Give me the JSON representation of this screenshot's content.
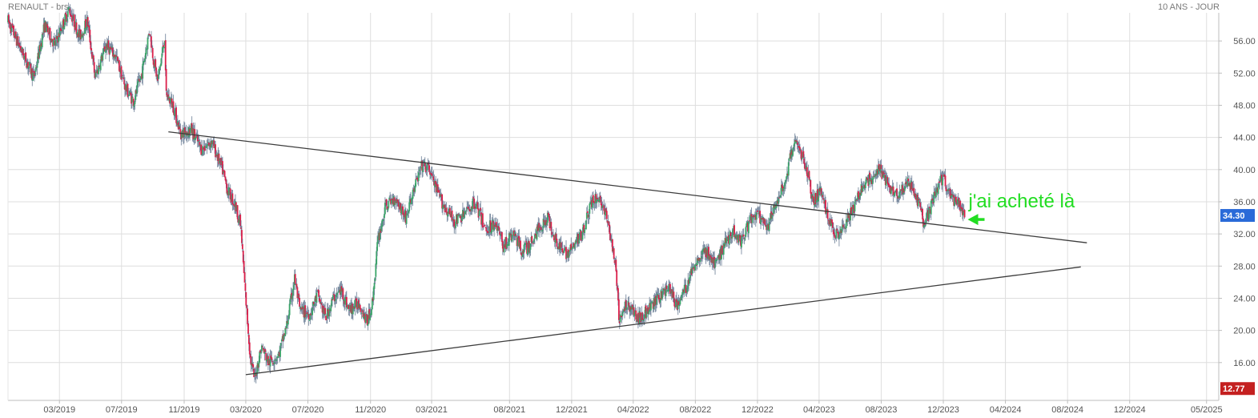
{
  "header": {
    "instrument": "RENAULT - brs",
    "period": "10 ANS - JOUR"
  },
  "annotation": {
    "text": "j'ai acheté là",
    "color": "#22dd22"
  },
  "colors": {
    "up": "#3aa668",
    "down": "#dc1f4a",
    "grid": "#dedede",
    "trendline": "#3c3c3c",
    "last_badge": "#2a6ad8",
    "low_badge": "#c42020"
  },
  "chart_data": {
    "type": "candlestick",
    "title": "RENAULT - brs",
    "subtitle": "10 ANS - JOUR",
    "xlabel": "",
    "ylabel": "",
    "x_range": [
      "2018-11-20",
      "2025-05-25"
    ],
    "ylim": [
      11.3,
      59.5
    ],
    "y_ticks": [
      16,
      20,
      24,
      28,
      32,
      36,
      40,
      44,
      48,
      52,
      56
    ],
    "y_tick_labels": [
      "16.00",
      "20.00",
      "24.00",
      "28.00",
      "32.00",
      "36.00",
      "40.00",
      "44.00",
      "48.00",
      "52.00",
      "56.00"
    ],
    "x_ticks": [
      "2019-03-01",
      "2019-07-01",
      "2019-11-01",
      "2020-03-01",
      "2020-07-01",
      "2020-11-01",
      "2021-03-01",
      "2021-08-01",
      "2021-12-01",
      "2022-04-01",
      "2022-08-01",
      "2022-12-01",
      "2023-04-01",
      "2023-08-01",
      "2023-12-01",
      "2024-04-01",
      "2024-08-01",
      "2024-12-01",
      "2025-05-01"
    ],
    "x_tick_labels": [
      "03/2019",
      "07/2019",
      "11/2019",
      "03/2020",
      "07/2020",
      "11/2020",
      "03/2021",
      "08/2021",
      "12/2021",
      "04/2022",
      "08/2022",
      "12/2022",
      "04/2023",
      "08/2023",
      "12/2023",
      "04/2024",
      "08/2024",
      "12/2024",
      "05/2025"
    ],
    "grid": true,
    "last_value": {
      "label": "34.30",
      "value": 34.3
    },
    "low_value": {
      "label": "12.77",
      "value": 12.77
    },
    "price_path": [
      [
        "2018-11-20",
        58.5
      ],
      [
        "2018-12-15",
        55.0
      ],
      [
        "2019-01-10",
        51.5
      ],
      [
        "2019-01-31",
        58.0
      ],
      [
        "2019-02-20",
        55.5
      ],
      [
        "2019-03-20",
        60.0
      ],
      [
        "2019-04-10",
        56.5
      ],
      [
        "2019-04-25",
        58.5
      ],
      [
        "2019-05-10",
        51.5
      ],
      [
        "2019-06-01",
        55.5
      ],
      [
        "2019-06-20",
        54.0
      ],
      [
        "2019-07-10",
        50.0
      ],
      [
        "2019-07-25",
        48.5
      ],
      [
        "2019-08-10",
        52.0
      ],
      [
        "2019-08-25",
        57.5
      ],
      [
        "2019-09-01",
        54.0
      ],
      [
        "2019-09-10",
        51.0
      ],
      [
        "2019-09-20",
        55.0
      ],
      [
        "2019-09-24",
        56.5
      ],
      [
        "2019-09-26",
        49.5
      ],
      [
        "2019-10-10",
        48.0
      ],
      [
        "2019-10-25",
        44.5
      ],
      [
        "2019-11-15",
        45.0
      ],
      [
        "2019-12-05",
        42.5
      ],
      [
        "2019-12-25",
        43.5
      ],
      [
        "2020-01-15",
        40.0
      ],
      [
        "2020-01-25",
        37.5
      ],
      [
        "2020-02-10",
        35.5
      ],
      [
        "2020-02-20",
        33.0
      ],
      [
        "2020-02-28",
        25.5
      ],
      [
        "2020-03-10",
        16.5
      ],
      [
        "2020-03-18",
        14.0
      ],
      [
        "2020-04-01",
        18.0
      ],
      [
        "2020-04-15",
        16.0
      ],
      [
        "2020-05-05",
        17.0
      ],
      [
        "2020-05-20",
        20.5
      ],
      [
        "2020-06-05",
        26.5
      ],
      [
        "2020-06-15",
        22.5
      ],
      [
        "2020-07-05",
        22.0
      ],
      [
        "2020-07-20",
        24.5
      ],
      [
        "2020-08-05",
        21.5
      ],
      [
        "2020-08-20",
        24.0
      ],
      [
        "2020-09-05",
        25.0
      ],
      [
        "2020-09-20",
        22.5
      ],
      [
        "2020-10-10",
        23.5
      ],
      [
        "2020-10-25",
        21.0
      ],
      [
        "2020-11-05",
        23.5
      ],
      [
        "2020-11-15",
        31.0
      ],
      [
        "2020-12-01",
        35.5
      ],
      [
        "2020-12-20",
        36.5
      ],
      [
        "2021-01-10",
        34.0
      ],
      [
        "2021-01-25",
        37.5
      ],
      [
        "2021-02-10",
        40.5
      ],
      [
        "2021-02-25",
        40.0
      ],
      [
        "2021-03-10",
        37.5
      ],
      [
        "2021-03-25",
        35.5
      ],
      [
        "2021-04-15",
        33.5
      ],
      [
        "2021-05-05",
        34.5
      ],
      [
        "2021-05-25",
        36.0
      ],
      [
        "2021-06-15",
        32.5
      ],
      [
        "2021-07-05",
        33.5
      ],
      [
        "2021-07-20",
        30.5
      ],
      [
        "2021-08-10",
        32.0
      ],
      [
        "2021-08-25",
        30.0
      ],
      [
        "2021-09-10",
        30.5
      ],
      [
        "2021-09-25",
        32.5
      ],
      [
        "2021-10-15",
        34.0
      ],
      [
        "2021-10-30",
        31.5
      ],
      [
        "2021-11-15",
        29.5
      ],
      [
        "2021-12-01",
        30.0
      ],
      [
        "2021-12-20",
        32.0
      ],
      [
        "2022-01-10",
        36.0
      ],
      [
        "2022-01-25",
        36.5
      ],
      [
        "2022-02-10",
        33.5
      ],
      [
        "2022-02-24",
        28.5
      ],
      [
        "2022-03-05",
        21.0
      ],
      [
        "2022-03-20",
        23.5
      ],
      [
        "2022-04-10",
        21.5
      ],
      [
        "2022-05-01",
        22.5
      ],
      [
        "2022-05-20",
        24.0
      ],
      [
        "2022-06-10",
        25.5
      ],
      [
        "2022-06-25",
        23.0
      ],
      [
        "2022-07-15",
        25.5
      ],
      [
        "2022-08-01",
        28.5
      ],
      [
        "2022-08-20",
        30.0
      ],
      [
        "2022-09-10",
        28.0
      ],
      [
        "2022-09-25",
        30.5
      ],
      [
        "2022-10-15",
        32.5
      ],
      [
        "2022-10-30",
        31.0
      ],
      [
        "2022-11-15",
        33.5
      ],
      [
        "2022-12-01",
        34.5
      ],
      [
        "2022-12-20",
        32.5
      ],
      [
        "2023-01-10",
        36.5
      ],
      [
        "2023-01-25",
        38.5
      ],
      [
        "2023-02-10",
        43.5
      ],
      [
        "2023-02-25",
        42.0
      ],
      [
        "2023-03-10",
        39.5
      ],
      [
        "2023-03-20",
        36.0
      ],
      [
        "2023-04-05",
        37.5
      ],
      [
        "2023-04-20",
        33.5
      ],
      [
        "2023-05-05",
        32.0
      ],
      [
        "2023-05-25",
        33.5
      ],
      [
        "2023-06-10",
        35.5
      ],
      [
        "2023-06-25",
        38.0
      ],
      [
        "2023-07-15",
        39.0
      ],
      [
        "2023-07-30",
        40.0
      ],
      [
        "2023-08-15",
        38.0
      ],
      [
        "2023-09-05",
        37.0
      ],
      [
        "2023-09-25",
        38.5
      ],
      [
        "2023-10-10",
        36.5
      ],
      [
        "2023-10-25",
        33.0
      ],
      [
        "2023-11-05",
        35.0
      ],
      [
        "2023-11-20",
        38.0
      ],
      [
        "2023-12-01",
        39.0
      ],
      [
        "2023-12-15",
        36.5
      ],
      [
        "2024-01-01",
        35.5
      ],
      [
        "2024-01-12",
        34.3
      ]
    ],
    "trendlines": [
      {
        "name": "upper",
        "points": [
          [
            "2019-10-01",
            44.7
          ],
          [
            "2024-09-08",
            30.9
          ]
        ]
      },
      {
        "name": "lower",
        "points": [
          [
            "2020-03-01",
            14.5
          ],
          [
            "2024-08-27",
            27.9
          ]
        ]
      }
    ],
    "annotation_arrow": {
      "from": [
        "2024-02-20",
        33.8
      ],
      "to": [
        "2024-01-18",
        33.8
      ]
    }
  }
}
